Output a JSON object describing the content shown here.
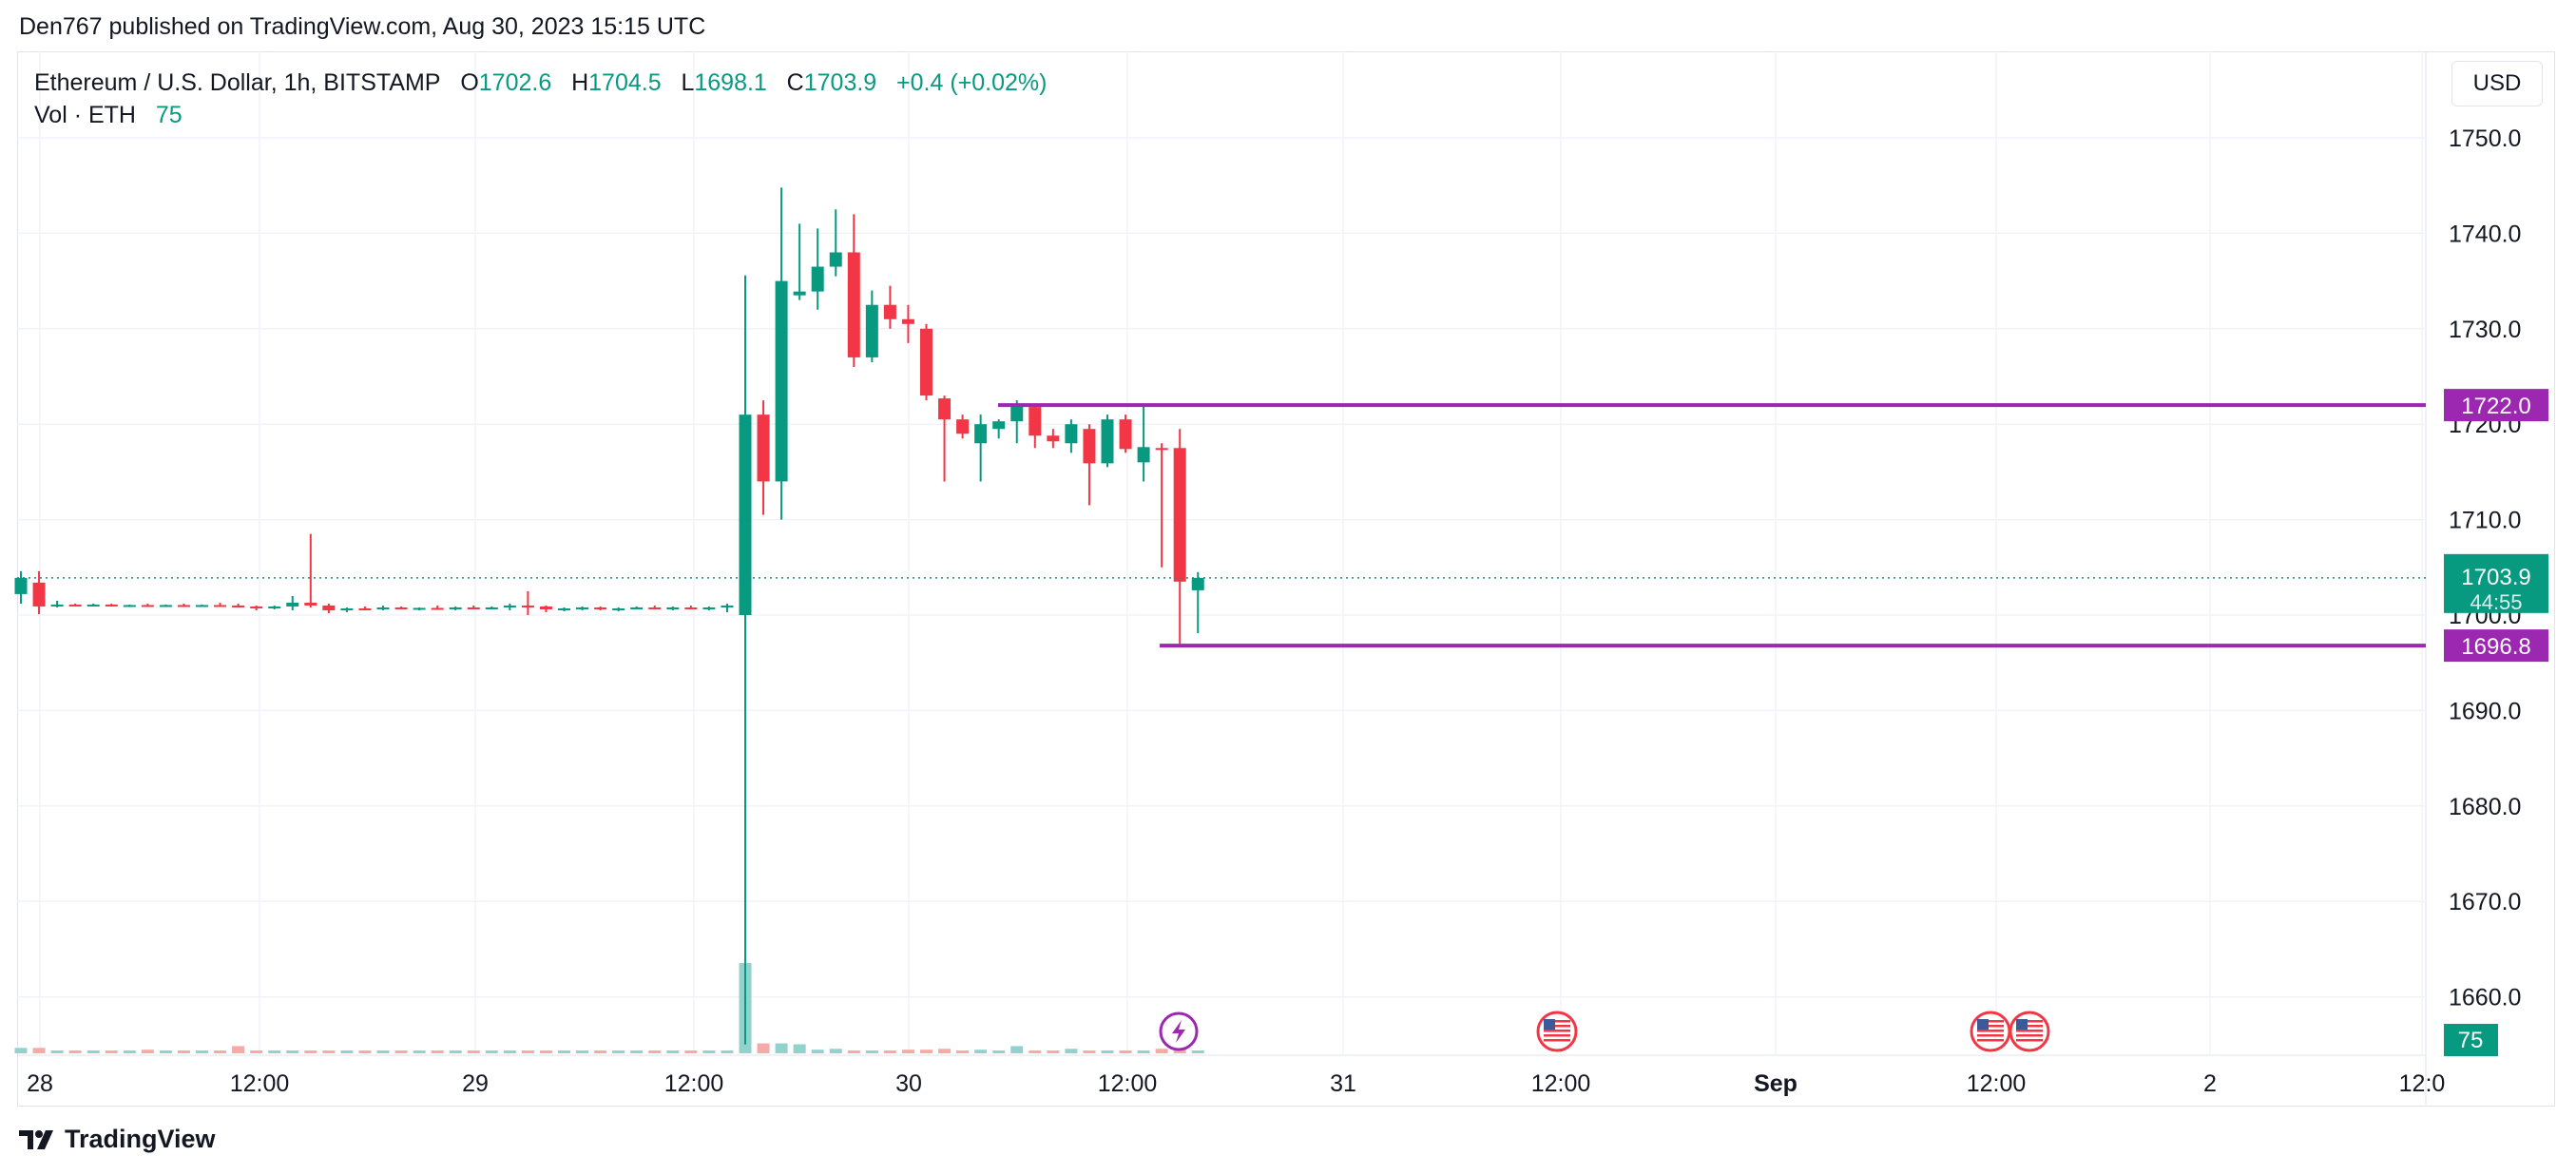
{
  "publisher": "Den767 published on TradingView.com, Aug 30, 2023 15:15 UTC",
  "header": {
    "symbol": "Ethereum / U.S. Dollar, 1h, BITSTAMP",
    "o_label": "O",
    "o": "1702.6",
    "h_label": "H",
    "h": "1704.5",
    "l_label": "L",
    "l": "1698.1",
    "c_label": "C",
    "c": "1703.9",
    "change": "+0.4 (+0.02%)",
    "vol_label": "Vol · ETH",
    "vol": "75"
  },
  "currency": "USD",
  "last_price": {
    "price": "1703.9",
    "countdown": "44:55"
  },
  "levels": [
    {
      "price": 1722.0,
      "label": "1722.0"
    },
    {
      "price": 1696.8,
      "label": "1696.8"
    }
  ],
  "volume_badge": "75",
  "footer": {
    "brand": "TradingView"
  },
  "colors": {
    "up": "#089981",
    "down": "#f23645",
    "up_vol": "#92d2cc",
    "down_vol": "#f7a9a7",
    "level": "#9c27b0"
  },
  "chart_data": {
    "type": "candlestick",
    "title": "Ethereum / U.S. Dollar, 1h, BITSTAMP",
    "ylim": [
      1655,
      1755
    ],
    "y_ticks": [
      1660.0,
      1670.0,
      1680.0,
      1690.0,
      1700.0,
      1710.0,
      1720.0,
      1730.0,
      1740.0,
      1750.0
    ],
    "x_ticks": [
      "28",
      "12:00",
      "29",
      "12:00",
      "30",
      "12:00",
      "31",
      "12:00",
      "Sep",
      "12:00",
      "2",
      "12:0"
    ],
    "events": [
      {
        "type": "lightning",
        "bar": 64
      },
      {
        "type": "us-flag",
        "bar": 86
      },
      {
        "type": "us-flag",
        "bar": 110
      },
      {
        "type": "us-flag",
        "bar": 112
      }
    ],
    "candles": [
      [
        1702.2,
        1704.6,
        1701.2,
        1703.9,
        6
      ],
      [
        1703.4,
        1704.6,
        1700.1,
        1700.9,
        6
      ],
      [
        1700.9,
        1701.5,
        1700.8,
        1701.1,
        1
      ],
      [
        1701.1,
        1701.2,
        1700.9,
        1701.0,
        1
      ],
      [
        1701.0,
        1701.2,
        1700.9,
        1701.1,
        1
      ],
      [
        1701.1,
        1701.2,
        1700.9,
        1701.0,
        1
      ],
      [
        1701.0,
        1701.1,
        1700.9,
        1701.05,
        3
      ],
      [
        1701.05,
        1701.2,
        1701.0,
        1701.0,
        4
      ],
      [
        1701.0,
        1701.1,
        1700.9,
        1701.05,
        1
      ],
      [
        1701.05,
        1701.2,
        1701.0,
        1701.0,
        1
      ],
      [
        1701.0,
        1701.1,
        1700.9,
        1701.05,
        1
      ],
      [
        1701.05,
        1701.3,
        1701.0,
        1701.0,
        1
      ],
      [
        1701.0,
        1701.2,
        1700.8,
        1700.9,
        8
      ],
      [
        1700.9,
        1701.0,
        1700.5,
        1700.7,
        2
      ],
      [
        1700.7,
        1701.0,
        1700.6,
        1700.9,
        3
      ],
      [
        1700.9,
        1702.0,
        1700.5,
        1701.3,
        3
      ],
      [
        1701.3,
        1708.5,
        1700.8,
        1701.0,
        3
      ],
      [
        1701.0,
        1701.2,
        1700.2,
        1700.5,
        1
      ],
      [
        1700.5,
        1700.8,
        1700.3,
        1700.7,
        1
      ],
      [
        1700.7,
        1700.9,
        1700.5,
        1700.6,
        1
      ],
      [
        1700.6,
        1701.0,
        1700.5,
        1700.8,
        3
      ],
      [
        1700.8,
        1700.9,
        1700.6,
        1700.7,
        1
      ],
      [
        1700.7,
        1700.8,
        1700.5,
        1700.75,
        2
      ],
      [
        1700.75,
        1701.0,
        1700.6,
        1700.7,
        1
      ],
      [
        1700.7,
        1700.9,
        1700.5,
        1700.8,
        1
      ],
      [
        1700.8,
        1701.0,
        1700.6,
        1700.7,
        1
      ],
      [
        1700.7,
        1700.9,
        1700.6,
        1700.8,
        1
      ],
      [
        1700.8,
        1701.2,
        1700.5,
        1701.0,
        2
      ],
      [
        1701.0,
        1702.5,
        1700.0,
        1700.9,
        2
      ],
      [
        1700.9,
        1701.0,
        1700.3,
        1700.6,
        1
      ],
      [
        1700.6,
        1700.8,
        1700.4,
        1700.7,
        1
      ],
      [
        1700.7,
        1700.9,
        1700.5,
        1700.8,
        1
      ],
      [
        1700.8,
        1700.9,
        1700.5,
        1700.6,
        1
      ],
      [
        1700.6,
        1700.8,
        1700.4,
        1700.7,
        1
      ],
      [
        1700.7,
        1700.9,
        1700.6,
        1700.8,
        1
      ],
      [
        1700.8,
        1701.0,
        1700.6,
        1700.7,
        1
      ],
      [
        1700.7,
        1700.9,
        1700.5,
        1700.8,
        1
      ],
      [
        1700.8,
        1701.0,
        1700.6,
        1700.7,
        1
      ],
      [
        1700.7,
        1700.9,
        1700.5,
        1700.8,
        1
      ],
      [
        1700.8,
        1701.2,
        1700.3,
        1701.0,
        1
      ],
      [
        1700.0,
        1735.6,
        1655.0,
        1721.0,
        100
      ],
      [
        1721.0,
        1722.5,
        1710.5,
        1714.0,
        11
      ],
      [
        1714.0,
        1744.8,
        1710.0,
        1735.0,
        11
      ],
      [
        1733.5,
        1741.0,
        1733.0,
        1733.9,
        10
      ],
      [
        1733.9,
        1740.5,
        1732.0,
        1736.5,
        4
      ],
      [
        1736.5,
        1742.5,
        1735.5,
        1738.0,
        5
      ],
      [
        1738.0,
        1742.0,
        1726.0,
        1727.0,
        3
      ],
      [
        1727.0,
        1734.0,
        1726.5,
        1732.5,
        2
      ],
      [
        1732.5,
        1734.5,
        1730.0,
        1731.0,
        3
      ],
      [
        1731.0,
        1732.5,
        1728.5,
        1730.5,
        4
      ],
      [
        1730.0,
        1730.5,
        1722.5,
        1723.0,
        4
      ],
      [
        1722.7,
        1723.0,
        1714.0,
        1720.5,
        5
      ],
      [
        1720.5,
        1721.0,
        1718.5,
        1719.0,
        2
      ],
      [
        1718.0,
        1721.0,
        1714.0,
        1720.0,
        4
      ],
      [
        1719.5,
        1720.5,
        1718.5,
        1720.3,
        2
      ],
      [
        1720.3,
        1722.5,
        1718.0,
        1722.0,
        8
      ],
      [
        1721.8,
        1722.0,
        1717.5,
        1718.8,
        3
      ],
      [
        1718.8,
        1719.5,
        1717.5,
        1718.2,
        2
      ],
      [
        1718.0,
        1720.5,
        1717.0,
        1720.0,
        5
      ],
      [
        1719.5,
        1720.0,
        1711.5,
        1715.9,
        2
      ],
      [
        1715.9,
        1721.0,
        1715.5,
        1720.5,
        2
      ],
      [
        1720.5,
        1721.0,
        1717.0,
        1717.4,
        2
      ],
      [
        1716.0,
        1722.0,
        1714.0,
        1717.6,
        3
      ],
      [
        1717.5,
        1718.0,
        1705.0,
        1717.3,
        5
      ],
      [
        1717.5,
        1719.5,
        1697.0,
        1703.5,
        12
      ],
      [
        1702.6,
        1704.5,
        1698.1,
        1703.9,
        3
      ]
    ]
  }
}
